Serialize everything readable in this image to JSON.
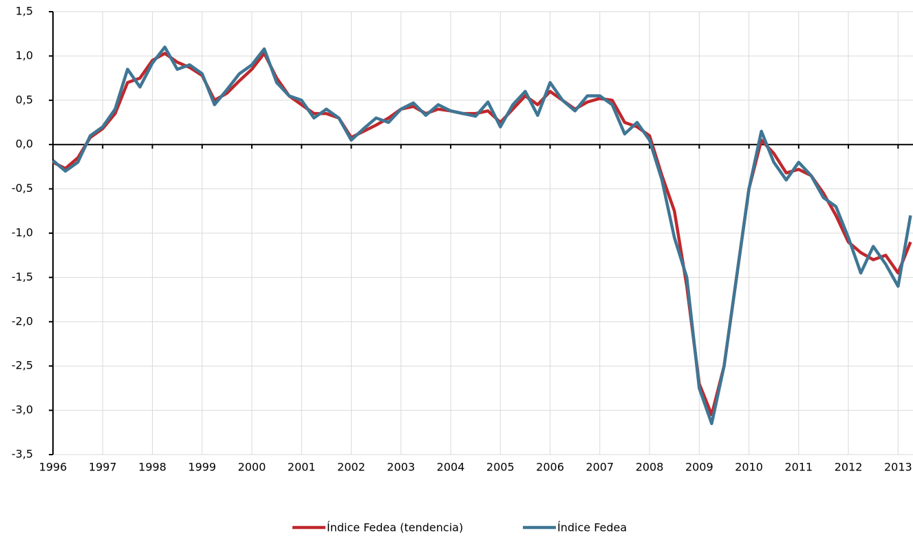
{
  "chart_data": {
    "type": "line",
    "x": [
      1996.0,
      1996.25,
      1996.5,
      1996.75,
      1997.0,
      1997.25,
      1997.5,
      1997.75,
      1998.0,
      1998.25,
      1998.5,
      1998.75,
      1999.0,
      1999.25,
      1999.5,
      1999.75,
      2000.0,
      2000.25,
      2000.5,
      2000.75,
      2001.0,
      2001.25,
      2001.5,
      2001.75,
      2002.0,
      2002.25,
      2002.5,
      2002.75,
      2003.0,
      2003.25,
      2003.5,
      2003.75,
      2004.0,
      2004.25,
      2004.5,
      2004.75,
      2005.0,
      2005.25,
      2005.5,
      2005.75,
      2006.0,
      2006.25,
      2006.5,
      2006.75,
      2007.0,
      2007.25,
      2007.5,
      2007.75,
      2008.0,
      2008.25,
      2008.5,
      2008.75,
      2009.0,
      2009.25,
      2009.5,
      2009.75,
      2010.0,
      2010.25,
      2010.5,
      2010.75,
      2011.0,
      2011.25,
      2011.5,
      2011.75,
      2012.0,
      2012.25,
      2012.5,
      2012.75,
      2013.0,
      2013.25
    ],
    "series": [
      {
        "name": "Índice Fedea (tendencia)",
        "color": "#c0282d",
        "values": [
          -0.2,
          -0.27,
          -0.15,
          0.08,
          0.18,
          0.35,
          0.7,
          0.75,
          0.95,
          1.03,
          0.93,
          0.87,
          0.78,
          0.5,
          0.58,
          0.72,
          0.85,
          1.03,
          0.75,
          0.55,
          0.45,
          0.35,
          0.35,
          0.3,
          0.08,
          0.15,
          0.22,
          0.3,
          0.4,
          0.43,
          0.35,
          0.4,
          0.38,
          0.35,
          0.35,
          0.38,
          0.25,
          0.4,
          0.55,
          0.45,
          0.6,
          0.5,
          0.4,
          0.48,
          0.52,
          0.5,
          0.25,
          0.2,
          0.1,
          -0.35,
          -0.75,
          -1.6,
          -2.7,
          -3.05,
          -2.5,
          -1.5,
          -0.5,
          0.05,
          -0.1,
          -0.32,
          -0.28,
          -0.35,
          -0.55,
          -0.8,
          -1.1,
          -1.22,
          -1.3,
          -1.25,
          -1.45,
          -1.1
        ]
      },
      {
        "name": "Índice Fedea",
        "color": "#3f7694",
        "values": [
          -0.18,
          -0.3,
          -0.2,
          0.1,
          0.2,
          0.4,
          0.85,
          0.65,
          0.92,
          1.1,
          0.85,
          0.9,
          0.8,
          0.45,
          0.62,
          0.8,
          0.9,
          1.08,
          0.7,
          0.55,
          0.5,
          0.3,
          0.4,
          0.3,
          0.05,
          0.18,
          0.3,
          0.25,
          0.4,
          0.47,
          0.33,
          0.45,
          0.38,
          0.35,
          0.32,
          0.48,
          0.2,
          0.45,
          0.6,
          0.33,
          0.7,
          0.5,
          0.38,
          0.55,
          0.55,
          0.45,
          0.12,
          0.25,
          0.05,
          -0.4,
          -1.05,
          -1.5,
          -2.75,
          -3.15,
          -2.5,
          -1.5,
          -0.5,
          0.15,
          -0.2,
          -0.4,
          -0.2,
          -0.35,
          -0.6,
          -0.7,
          -1.05,
          -1.45,
          -1.15,
          -1.35,
          -1.6,
          -0.8
        ]
      }
    ],
    "xlim": [
      1996,
      2013.3
    ],
    "xticks": [
      1996,
      1997,
      1998,
      1999,
      2000,
      2001,
      2002,
      2003,
      2004,
      2005,
      2006,
      2007,
      2008,
      2009,
      2010,
      2011,
      2012,
      2013
    ],
    "ylim": [
      -3.5,
      1.5
    ],
    "yticks": [
      {
        "value": -3.5,
        "label": "-3,5"
      },
      {
        "value": -3,
        "label": "-3,0"
      },
      {
        "value": -2.5,
        "label": "-2,5"
      },
      {
        "value": -2,
        "label": "-2,0"
      },
      {
        "value": -1.5,
        "label": "-1,5"
      },
      {
        "value": -1,
        "label": "-1,0"
      },
      {
        "value": -0.5,
        "label": "-0,5"
      },
      {
        "value": 0,
        "label": "0,0"
      },
      {
        "value": 0.5,
        "label": "0,5"
      },
      {
        "value": 1,
        "label": "1,0"
      },
      {
        "value": 1.5,
        "label": "1,5"
      }
    ],
    "grid": true,
    "legend": "bottom"
  }
}
